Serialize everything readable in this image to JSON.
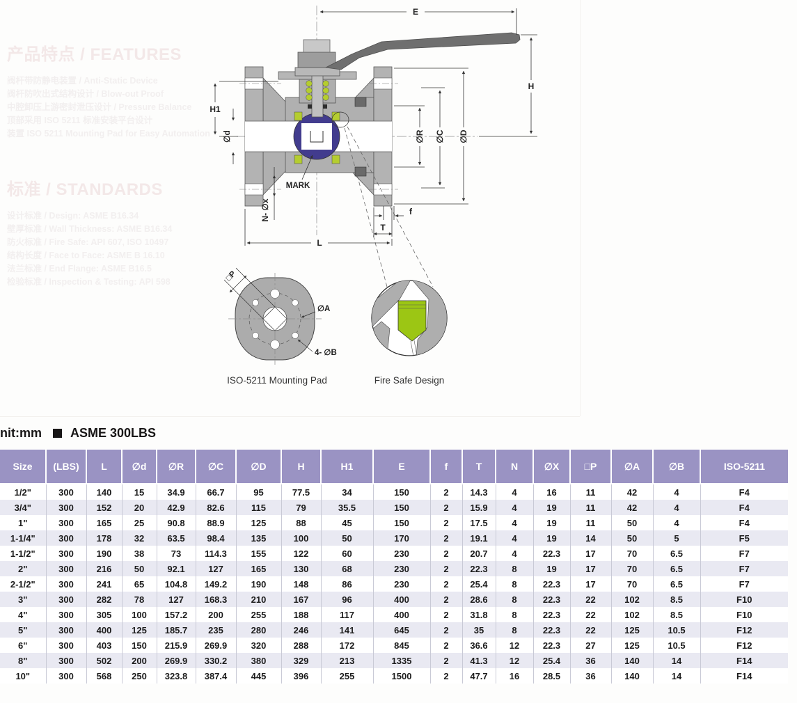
{
  "page": {
    "unit_label": "nit:mm",
    "spec_label": "ASME 300LBS"
  },
  "features": {
    "heading": "产品特点 / FEATURES",
    "lines": [
      "阀杆带防静电装置 / Anti-Static Device",
      "阀杆防吹出式结构设计 / Blow-out Proof",
      "中腔卸压上游密封泄压设计 / Pressure Balance",
      "顶部采用 ISO 5211 标准安装平台设计",
      "装置 ISO 5211 Mounting Pad for Easy Automation"
    ]
  },
  "standards": {
    "heading": "标准 / STANDARDS",
    "lines": [
      "设计标准 / Design: ASME B16.34",
      "壁厚标准 / Wall Thickness: ASME B16.34",
      "防火标准 / Fire Safe: API 607, ISO 10497",
      "结构长度 / Face to Face: ASME B 16.10",
      "法兰标准 / End Flange: ASME B16.5",
      "检验标准 / Inspection & Testing: API 598"
    ]
  },
  "drawing": {
    "labels": {
      "E": "E",
      "H": "H",
      "H1": "H1",
      "d": "∅d",
      "R": "∅R",
      "C": "∅C",
      "D": "∅D",
      "f": "f",
      "T": "T",
      "L": "L",
      "Nx": "N- ∅x",
      "mark": "MARK",
      "P": "□P",
      "A": "∅A",
      "B": "4- ∅B"
    },
    "captions": {
      "iso": "ISO-5211 Mounting Pad",
      "fire": "Fire Safe Design"
    },
    "colors": {
      "body_gray": "#b0b0b0",
      "handle_gray": "#6f6f6f",
      "ball_navy": "#423c8e",
      "seat_green": "#b5cd2f",
      "fire_green": "#9cc614"
    }
  },
  "table": {
    "header_bg": "#9a93c3",
    "alt_row_bg": "#e9e9f2",
    "columns": [
      "Size",
      "(LBS)",
      "L",
      "∅d",
      "∅R",
      "∅C",
      "∅D",
      "H",
      "H1",
      "E",
      "f",
      "T",
      "N",
      "∅X",
      "□P",
      "∅A",
      "∅B",
      "ISO-5211"
    ],
    "rows": [
      [
        "1/2\"",
        "300",
        "140",
        "15",
        "34.9",
        "66.7",
        "95",
        "77.5",
        "34",
        "150",
        "2",
        "14.3",
        "4",
        "16",
        "11",
        "42",
        "4",
        "F4"
      ],
      [
        "3/4\"",
        "300",
        "152",
        "20",
        "42.9",
        "82.6",
        "115",
        "79",
        "35.5",
        "150",
        "2",
        "15.9",
        "4",
        "19",
        "11",
        "42",
        "4",
        "F4"
      ],
      [
        "1\"",
        "300",
        "165",
        "25",
        "90.8",
        "88.9",
        "125",
        "88",
        "45",
        "150",
        "2",
        "17.5",
        "4",
        "19",
        "11",
        "50",
        "4",
        "F4"
      ],
      [
        "1-1/4\"",
        "300",
        "178",
        "32",
        "63.5",
        "98.4",
        "135",
        "100",
        "50",
        "170",
        "2",
        "19.1",
        "4",
        "19",
        "14",
        "50",
        "5",
        "F5"
      ],
      [
        "1-1/2\"",
        "300",
        "190",
        "38",
        "73",
        "114.3",
        "155",
        "122",
        "60",
        "230",
        "2",
        "20.7",
        "4",
        "22.3",
        "17",
        "70",
        "6.5",
        "F7"
      ],
      [
        "2\"",
        "300",
        "216",
        "50",
        "92.1",
        "127",
        "165",
        "130",
        "68",
        "230",
        "2",
        "22.3",
        "8",
        "19",
        "17",
        "70",
        "6.5",
        "F7"
      ],
      [
        "2-1/2\"",
        "300",
        "241",
        "65",
        "104.8",
        "149.2",
        "190",
        "148",
        "86",
        "230",
        "2",
        "25.4",
        "8",
        "22.3",
        "17",
        "70",
        "6.5",
        "F7"
      ],
      [
        "3\"",
        "300",
        "282",
        "78",
        "127",
        "168.3",
        "210",
        "167",
        "96",
        "400",
        "2",
        "28.6",
        "8",
        "22.3",
        "22",
        "102",
        "8.5",
        "F10"
      ],
      [
        "4\"",
        "300",
        "305",
        "100",
        "157.2",
        "200",
        "255",
        "188",
        "117",
        "400",
        "2",
        "31.8",
        "8",
        "22.3",
        "22",
        "102",
        "8.5",
        "F10"
      ],
      [
        "5\"",
        "300",
        "400",
        "125",
        "185.7",
        "235",
        "280",
        "246",
        "141",
        "645",
        "2",
        "35",
        "8",
        "22.3",
        "22",
        "125",
        "10.5",
        "F12"
      ],
      [
        "6\"",
        "300",
        "403",
        "150",
        "215.9",
        "269.9",
        "320",
        "288",
        "172",
        "845",
        "2",
        "36.6",
        "12",
        "22.3",
        "27",
        "125",
        "10.5",
        "F12"
      ],
      [
        "8\"",
        "300",
        "502",
        "200",
        "269.9",
        "330.2",
        "380",
        "329",
        "213",
        "1335",
        "2",
        "41.3",
        "12",
        "25.4",
        "36",
        "140",
        "14",
        "F14"
      ],
      [
        "10\"",
        "300",
        "568",
        "250",
        "323.8",
        "387.4",
        "445",
        "396",
        "255",
        "1500",
        "2",
        "47.7",
        "16",
        "28.5",
        "36",
        "140",
        "14",
        "F14"
      ]
    ]
  }
}
